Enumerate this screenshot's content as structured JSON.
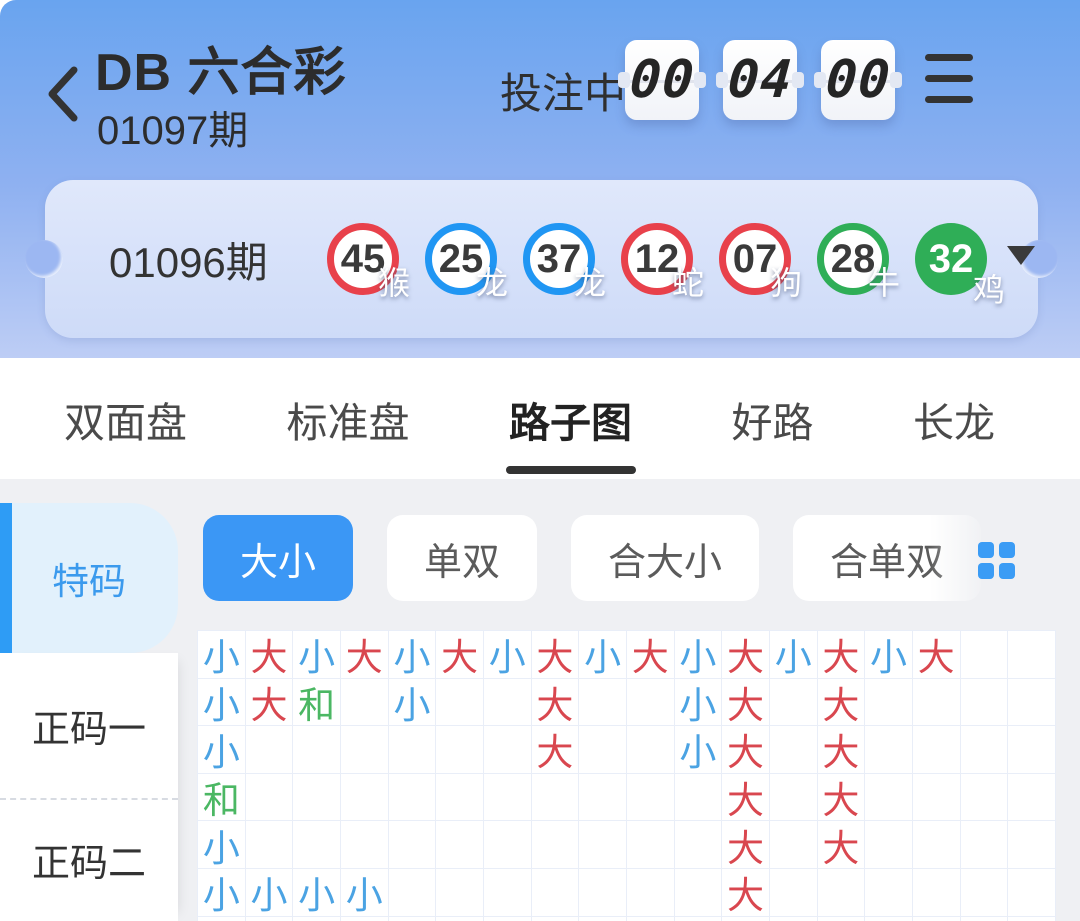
{
  "header": {
    "title": "DB 六合彩",
    "period": "01097期",
    "betting_status": "投注中",
    "countdown": {
      "hours": "00",
      "minutes": "04",
      "seconds": "00"
    }
  },
  "result_card": {
    "period": "01096期",
    "balls": [
      {
        "number": "45",
        "zodiac": "猴",
        "color": "red",
        "style": "ring"
      },
      {
        "number": "25",
        "zodiac": "龙",
        "color": "blue",
        "style": "ring"
      },
      {
        "number": "37",
        "zodiac": "龙",
        "color": "blue",
        "style": "ring"
      },
      {
        "number": "12",
        "zodiac": "蛇",
        "color": "red",
        "style": "ring"
      },
      {
        "number": "07",
        "zodiac": "狗",
        "color": "red",
        "style": "ring"
      },
      {
        "number": "28",
        "zodiac": "牛",
        "color": "green",
        "style": "ring"
      },
      {
        "number": "32",
        "zodiac": "鸡",
        "color": "green",
        "style": "solid"
      }
    ]
  },
  "tabs": [
    {
      "label": "双面盘",
      "active": false
    },
    {
      "label": "标准盘",
      "active": false
    },
    {
      "label": "路子图",
      "active": true
    },
    {
      "label": "好路",
      "active": false
    },
    {
      "label": "长龙",
      "active": false
    }
  ],
  "sidebar": [
    {
      "label": "特码",
      "active": true
    },
    {
      "label": "正码一",
      "active": false
    },
    {
      "label": "正码二",
      "active": false
    }
  ],
  "filters": [
    {
      "label": "大小",
      "active": true
    },
    {
      "label": "单双",
      "active": false
    },
    {
      "label": "合大小",
      "active": false
    },
    {
      "label": "合单双",
      "active": false
    }
  ],
  "colors": {
    "accent_blue": "#3b97f5",
    "ball_red": "#e8414b",
    "ball_blue": "#2096f3",
    "ball_green": "#2fae57",
    "cell_small_blue": "#4ba3e3",
    "cell_big_red": "#d9474f",
    "cell_draw_green": "#4bb763"
  },
  "road_grid": {
    "columns": 18,
    "legend": {
      "小": "cell_small_blue",
      "大": "cell_big_red",
      "和": "cell_draw_green"
    },
    "rows": [
      [
        "小",
        "大",
        "小",
        "大",
        "小",
        "大",
        "小",
        "大",
        "小",
        "大",
        "小",
        "大",
        "小",
        "大",
        "小",
        "大",
        "",
        ""
      ],
      [
        "小",
        "大",
        "和",
        "",
        "小",
        "",
        "",
        "大",
        "",
        "",
        "小",
        "大",
        "",
        "大",
        "",
        "",
        "",
        ""
      ],
      [
        "小",
        "",
        "",
        "",
        "",
        "",
        "",
        "大",
        "",
        "",
        "小",
        "大",
        "",
        "大",
        "",
        "",
        "",
        ""
      ],
      [
        "和",
        "",
        "",
        "",
        "",
        "",
        "",
        "",
        "",
        "",
        "",
        "大",
        "",
        "大",
        "",
        "",
        "",
        ""
      ],
      [
        "小",
        "",
        "",
        "",
        "",
        "",
        "",
        "",
        "",
        "",
        "",
        "大",
        "",
        "大",
        "",
        "",
        "",
        ""
      ],
      [
        "小",
        "小",
        "小",
        "小",
        "",
        "",
        "",
        "",
        "",
        "",
        "",
        "大",
        "",
        "",
        "",
        "",
        "",
        ""
      ],
      [
        "",
        "",
        "",
        "",
        "",
        "",
        "",
        "",
        "",
        "",
        "",
        "",
        "",
        "",
        "",
        "",
        "",
        ""
      ]
    ]
  }
}
